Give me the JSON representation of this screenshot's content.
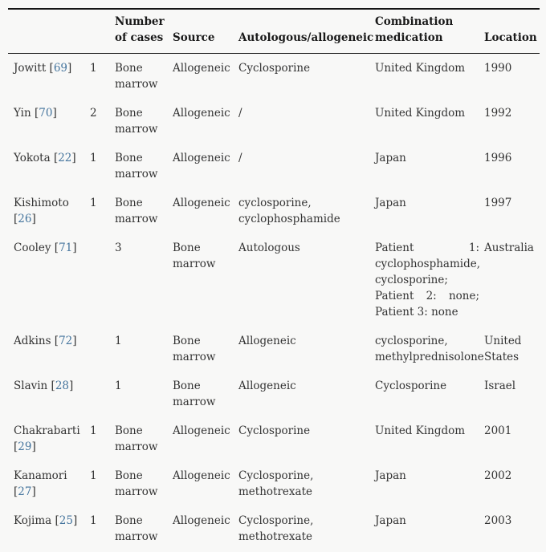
{
  "theme": {
    "background": "#f8f8f7",
    "text_color": "#333333",
    "heading_color": "#1a1a1a",
    "link_color": "#44749d",
    "border_color": "#151515"
  },
  "table": {
    "bracket_open": "[",
    "bracket_close": "]",
    "headers": [
      "",
      "",
      "Number of cases",
      "Source",
      "Autologous/allogeneic",
      "Combination medication",
      "Location"
    ],
    "rows": [
      {
        "author": "Jowitt",
        "ref": "69",
        "cells": [
          "1",
          "Bone marrow",
          "Allogeneic",
          "Cyclosporine",
          "United Kingdom",
          "1990"
        ]
      },
      {
        "author": "Yin",
        "ref": "70",
        "cells": [
          "2",
          "Bone marrow",
          "Allogeneic",
          "/",
          "United Kingdom",
          "1992"
        ]
      },
      {
        "author": "Yokota",
        "ref": "22",
        "cells": [
          "1",
          "Bone marrow",
          "Allogeneic",
          "/",
          "Japan",
          "1996"
        ]
      },
      {
        "author": "Kishimoto",
        "ref": "26",
        "cells": [
          "1",
          "Bone marrow",
          "Allogeneic",
          "cyclosporine, cyclophosphamide",
          "Japan",
          "1997"
        ]
      },
      {
        "author": "Cooley",
        "ref": "71",
        "cells": [
          "",
          "3",
          "Bone marrow",
          "Autologous",
          "Patient 1: cyclophosphamide, cyclosporine; Patient 2: none; Patient 3: none",
          "Australia"
        ]
      },
      {
        "author": "Adkins",
        "ref": "72",
        "cells": [
          "",
          "1",
          "Bone marrow",
          "Allogeneic",
          "cyclosporine, methylprednisolone",
          "United States"
        ]
      },
      {
        "author": "Slavin",
        "ref": "28",
        "cells": [
          "",
          "1",
          "Bone marrow",
          "Allogeneic",
          "Cyclosporine",
          "Israel"
        ]
      },
      {
        "author": "Chakrabarti",
        "ref": "29",
        "cells": [
          "1",
          "Bone marrow",
          "Allogeneic",
          "Cyclosporine",
          "United Kingdom",
          "2001"
        ]
      },
      {
        "author": "Kanamori",
        "ref": "27",
        "cells": [
          "1",
          "Bone marrow",
          "Allogeneic",
          "Cyclosporine, methotrexate",
          "Japan",
          "2002"
        ]
      },
      {
        "author": "Kojima",
        "ref": "25",
        "cells": [
          "1",
          "Bone marrow",
          "Allogeneic",
          "Cyclosporine, methotrexate",
          "Japan",
          "2003"
        ]
      }
    ]
  }
}
